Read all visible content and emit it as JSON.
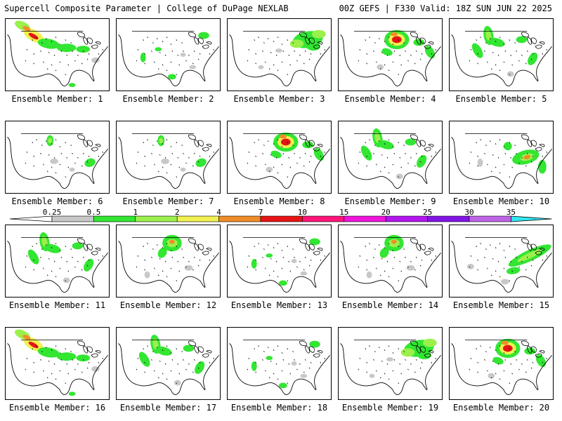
{
  "header": {
    "title": "Supercell Composite Parameter | College of DuPage NEXLAB",
    "run_info": "00Z GEFS | F330 Valid: 18Z SUN JUN 22 2025"
  },
  "legend": {
    "thresholds": [
      "0.25",
      "0.5",
      "1",
      "2",
      "4",
      "7",
      "10",
      "15",
      "20",
      "25",
      "30",
      "35"
    ],
    "colors": [
      "#c8c8c8",
      "#32e632",
      "#9bf04b",
      "#f0f050",
      "#f08c28",
      "#e61414",
      "#ff1478",
      "#f014dc",
      "#b414f0",
      "#8214e6",
      "#be64e6",
      "#32e6f0"
    ]
  },
  "panels": [
    {
      "label": "Ensemble Member: 1",
      "pattern": "northern-plains-band-strong"
    },
    {
      "label": "Ensemble Member: 2",
      "pattern": "scattered-light"
    },
    {
      "label": "Ensemble Member: 3",
      "pattern": "great-lakes-broad"
    },
    {
      "label": "Ensemble Member: 4",
      "pattern": "upper-midwest-strong"
    },
    {
      "label": "Ensemble Member: 5",
      "pattern": "northern-plains-spots"
    },
    {
      "label": "Ensemble Member: 6",
      "pattern": "isolated-light"
    },
    {
      "label": "Ensemble Member: 7",
      "pattern": "isolated-light"
    },
    {
      "label": "Ensemble Member: 8",
      "pattern": "upper-midwest-strong"
    },
    {
      "label": "Ensemble Member: 9",
      "pattern": "northern-plains-spots"
    },
    {
      "label": "Ensemble Member: 10",
      "pattern": "ohio-valley"
    },
    {
      "label": "Ensemble Member: 11",
      "pattern": "northern-plains-spots"
    },
    {
      "label": "Ensemble Member: 12",
      "pattern": "upper-midwest-moderate"
    },
    {
      "label": "Ensemble Member: 13",
      "pattern": "scattered-light"
    },
    {
      "label": "Ensemble Member: 14",
      "pattern": "upper-midwest-moderate"
    },
    {
      "label": "Ensemble Member: 15",
      "pattern": "east-band"
    },
    {
      "label": "Ensemble Member: 16",
      "pattern": "northern-plains-band-strong"
    },
    {
      "label": "Ensemble Member: 17",
      "pattern": "northern-plains-spots"
    },
    {
      "label": "Ensemble Member: 18",
      "pattern": "scattered-light"
    },
    {
      "label": "Ensemble Member: 19",
      "pattern": "great-lakes-broad"
    },
    {
      "label": "Ensemble Member: 20",
      "pattern": "upper-midwest-strong"
    }
  ]
}
